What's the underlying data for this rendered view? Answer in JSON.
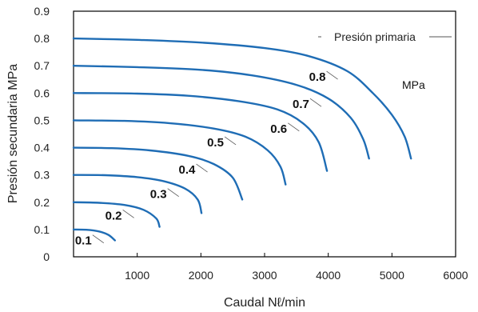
{
  "chart_data": {
    "type": "line",
    "title": "",
    "xlabel": "Caudal Nℓ/min",
    "ylabel": "Presión secundaria MPa",
    "xlim": [
      0,
      6000
    ],
    "ylim": [
      0,
      0.9
    ],
    "x_ticks": [
      "1000",
      "2000",
      "3000",
      "4000",
      "5000",
      "6000"
    ],
    "y_ticks": [
      "0",
      "0.1",
      "0.2",
      "0.3",
      "0.4",
      "0.5",
      "0.6",
      "0.7",
      "0.8",
      "0.9"
    ],
    "grid": false,
    "annotation": "Presión primaria",
    "unit_annotation": "MPa",
    "line_color": "#1f6db5",
    "series": [
      {
        "name": "0.1",
        "x": [
          0,
          200,
          400,
          550,
          650
        ],
        "y": [
          0.1,
          0.099,
          0.093,
          0.08,
          0.06
        ]
      },
      {
        "name": "0.2",
        "x": [
          0,
          400,
          800,
          1100,
          1300,
          1350
        ],
        "y": [
          0.2,
          0.198,
          0.19,
          0.172,
          0.14,
          0.11
        ]
      },
      {
        "name": "0.3",
        "x": [
          0,
          500,
          1000,
          1400,
          1750,
          1950,
          2010
        ],
        "y": [
          0.3,
          0.299,
          0.292,
          0.278,
          0.25,
          0.21,
          0.16
        ]
      },
      {
        "name": "0.4",
        "x": [
          0,
          600,
          1200,
          1800,
          2200,
          2500,
          2650
        ],
        "y": [
          0.4,
          0.398,
          0.39,
          0.37,
          0.34,
          0.29,
          0.21
        ]
      },
      {
        "name": "0.5",
        "x": [
          0,
          800,
          1500,
          2200,
          2700,
          3050,
          3250,
          3330
        ],
        "y": [
          0.5,
          0.498,
          0.49,
          0.47,
          0.44,
          0.39,
          0.33,
          0.265
        ]
      },
      {
        "name": "0.6",
        "x": [
          0,
          1000,
          1800,
          2600,
          3200,
          3600,
          3850,
          3980
        ],
        "y": [
          0.6,
          0.598,
          0.59,
          0.57,
          0.54,
          0.49,
          0.42,
          0.315
        ]
      },
      {
        "name": "0.7",
        "x": [
          0,
          1000,
          2000,
          2800,
          3500,
          4000,
          4350,
          4550,
          4640
        ],
        "y": [
          0.7,
          0.695,
          0.685,
          0.665,
          0.63,
          0.58,
          0.51,
          0.43,
          0.36
        ]
      },
      {
        "name": "0.8",
        "x": [
          0,
          1000,
          2000,
          3000,
          3700,
          4300,
          4700,
          5000,
          5200,
          5300
        ],
        "y": [
          0.8,
          0.795,
          0.785,
          0.765,
          0.735,
          0.68,
          0.6,
          0.52,
          0.44,
          0.36
        ]
      }
    ]
  }
}
